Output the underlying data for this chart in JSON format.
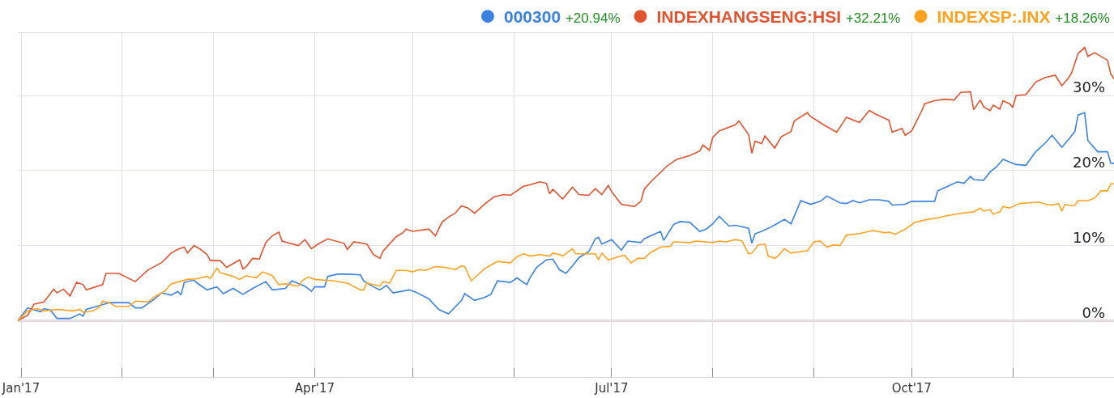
{
  "chart_data": {
    "type": "line",
    "xlim": [
      "2016-12-31",
      "2017-12-02"
    ],
    "xticks": [
      {
        "value": "2017-01-01",
        "label": "Jan'17"
      },
      {
        "value": "2017-02-01",
        "label": null
      },
      {
        "value": "2017-03-01",
        "label": null
      },
      {
        "value": "2017-04-01",
        "label": "Apr'17"
      },
      {
        "value": "2017-05-01",
        "label": null
      },
      {
        "value": "2017-06-01",
        "label": null
      },
      {
        "value": "2017-07-01",
        "label": "Jul'17"
      },
      {
        "value": "2017-08-01",
        "label": null
      },
      {
        "value": "2017-09-01",
        "label": null
      },
      {
        "value": "2017-10-01",
        "label": "Oct'17"
      },
      {
        "value": "2017-11-01",
        "label": null
      },
      {
        "value": "2017-12-01",
        "label": null
      }
    ],
    "ylim": [
      -7.5,
      38.3
    ],
    "yticks": [
      {
        "value": 0,
        "label": "0%"
      },
      {
        "value": 10,
        "label": "10%"
      },
      {
        "value": 20,
        "label": "20%"
      },
      {
        "value": 30,
        "label": "30%"
      }
    ],
    "grid": true,
    "legend": "top right",
    "annotations": [
      "+20.94%",
      "+32.21%",
      "+18.26%"
    ],
    "ref_lines": [
      {
        "axis": "y",
        "value": 0,
        "color": "#9a5f5f"
      }
    ],
    "series": [
      {
        "name": "000300",
        "color": "#3b82e0",
        "x": [
          "2016-12-31",
          "2017-01-03",
          "2017-01-07",
          "2017-01-08",
          "2017-01-10",
          "2017-01-12",
          "2017-01-16",
          "2017-01-19",
          "2017-01-20",
          "2017-01-21",
          "2017-01-25",
          "2017-01-28",
          "2017-02-03",
          "2017-02-05",
          "2017-02-07",
          "2017-02-11",
          "2017-02-13",
          "2017-02-16",
          "2017-02-18",
          "2017-02-19",
          "2017-02-20",
          "2017-02-23",
          "2017-02-24",
          "2017-02-27",
          "2017-03-02",
          "2017-03-04",
          "2017-03-07",
          "2017-03-10",
          "2017-03-13",
          "2017-03-17",
          "2017-03-19",
          "2017-03-23",
          "2017-03-25",
          "2017-03-29",
          "2017-03-31",
          "2017-04-01",
          "2017-04-04",
          "2017-04-05",
          "2017-04-08",
          "2017-04-11",
          "2017-04-15",
          "2017-04-16",
          "2017-04-19",
          "2017-04-21",
          "2017-04-23",
          "2017-04-25",
          "2017-04-30",
          "2017-05-02",
          "2017-05-06",
          "2017-05-09",
          "2017-05-12",
          "2017-05-16",
          "2017-05-17",
          "2017-05-20",
          "2017-05-23",
          "2017-05-25",
          "2017-05-27",
          "2017-05-31",
          "2017-06-02",
          "2017-06-05",
          "2017-06-06",
          "2017-06-08",
          "2017-06-11",
          "2017-06-13",
          "2017-06-15",
          "2017-06-17",
          "2017-06-19",
          "2017-06-21",
          "2017-06-24",
          "2017-06-26",
          "2017-06-27",
          "2017-06-28",
          "2017-07-01",
          "2017-07-04",
          "2017-07-06",
          "2017-07-10",
          "2017-07-11",
          "2017-07-16",
          "2017-07-17",
          "2017-07-20",
          "2017-07-22",
          "2017-07-25",
          "2017-07-28",
          "2017-07-30",
          "2017-08-01",
          "2017-08-03",
          "2017-08-06",
          "2017-08-08",
          "2017-08-12",
          "2017-08-13",
          "2017-08-14",
          "2017-08-16",
          "2017-08-19",
          "2017-08-21",
          "2017-08-23",
          "2017-08-25",
          "2017-08-28",
          "2017-08-31",
          "2017-09-03",
          "2017-09-05",
          "2017-09-09",
          "2017-09-11",
          "2017-09-13",
          "2017-09-15",
          "2017-09-18",
          "2017-09-21",
          "2017-09-24",
          "2017-09-25",
          "2017-09-29",
          "2017-10-01",
          "2017-10-08",
          "2017-10-09",
          "2017-10-11",
          "2017-10-15",
          "2017-10-17",
          "2017-10-19",
          "2017-10-20",
          "2017-10-23",
          "2017-10-25",
          "2017-10-27",
          "2017-10-29",
          "2017-11-02",
          "2017-11-05",
          "2017-11-08",
          "2017-11-11",
          "2017-11-13",
          "2017-11-16",
          "2017-11-18",
          "2017-11-20",
          "2017-11-21",
          "2017-11-23",
          "2017-11-24",
          "2017-11-27",
          "2017-11-30",
          "2017-12-01",
          "2017-12-02"
        ],
        "values": [
          0,
          1.7,
          1.2,
          1.6,
          1.4,
          0.3,
          0.3,
          0.9,
          0.6,
          1.5,
          2.0,
          2.4,
          2.4,
          1.7,
          1.7,
          2.9,
          3.7,
          3.4,
          3.9,
          3.4,
          5.1,
          5.4,
          5.0,
          4.1,
          4.5,
          3.6,
          4.3,
          3.5,
          4.3,
          5.2,
          4.1,
          4.3,
          5.3,
          4.6,
          3.9,
          4.5,
          4.5,
          5.9,
          6.2,
          6.2,
          6.1,
          5.3,
          4.5,
          4.1,
          4.7,
          3.7,
          4.1,
          3.8,
          2.9,
          1.5,
          0.9,
          2.7,
          3.6,
          2.7,
          3.1,
          3.5,
          5.3,
          5.1,
          5.7,
          4.8,
          5.7,
          7.1,
          8.1,
          8.2,
          6.8,
          6.3,
          7.3,
          8.4,
          9.2,
          10.9,
          11.1,
          10.2,
          10.8,
          9.4,
          10.6,
          10.4,
          10.9,
          11.9,
          10.7,
          12.8,
          13.2,
          13.1,
          11.9,
          12.2,
          12.9,
          13.9,
          12.6,
          12.7,
          12.3,
          10.3,
          11.6,
          11.9,
          12.5,
          13.0,
          13.5,
          12.9,
          16.0,
          15.5,
          15.9,
          16.6,
          15.7,
          15.6,
          16.0,
          15.7,
          16.1,
          16.1,
          15.9,
          15.4,
          15.5,
          15.9,
          15.9,
          17.3,
          17.7,
          18.5,
          18.3,
          19.2,
          18.8,
          18.7,
          19.8,
          20.5,
          21.5,
          20.8,
          20.7,
          22.5,
          23.7,
          24.7,
          23.1,
          24.1,
          25.2,
          27.4,
          27.7,
          24.0,
          22.5,
          22.5,
          21.0,
          20.94
        ]
      },
      {
        "name": "INDEXHANGSENG:HSI",
        "color": "#e0532f",
        "x": [
          "2016-12-31",
          "2017-01-03",
          "2017-01-05",
          "2017-01-08",
          "2017-01-11",
          "2017-01-12",
          "2017-01-14",
          "2017-01-16",
          "2017-01-18",
          "2017-01-20",
          "2017-01-21",
          "2017-01-26",
          "2017-01-27",
          "2017-01-31",
          "2017-02-05",
          "2017-02-07",
          "2017-02-09",
          "2017-02-13",
          "2017-02-16",
          "2017-02-18",
          "2017-02-20",
          "2017-02-21",
          "2017-02-23",
          "2017-02-25",
          "2017-02-27",
          "2017-02-28",
          "2017-03-03",
          "2017-03-05",
          "2017-03-09",
          "2017-03-10",
          "2017-03-11",
          "2017-03-13",
          "2017-03-15",
          "2017-03-17",
          "2017-03-19",
          "2017-03-21",
          "2017-03-22",
          "2017-03-27",
          "2017-03-29",
          "2017-03-31",
          "2017-04-02",
          "2017-04-05",
          "2017-04-10",
          "2017-04-11",
          "2017-04-13",
          "2017-04-17",
          "2017-04-19",
          "2017-04-21",
          "2017-04-22",
          "2017-04-26",
          "2017-04-28",
          "2017-04-29",
          "2017-05-01",
          "2017-05-06",
          "2017-05-08",
          "2017-05-10",
          "2017-05-12",
          "2017-05-14",
          "2017-05-16",
          "2017-05-18",
          "2017-05-20",
          "2017-05-23",
          "2017-05-26",
          "2017-05-29",
          "2017-05-31",
          "2017-06-04",
          "2017-06-06",
          "2017-06-09",
          "2017-06-11",
          "2017-06-12",
          "2017-06-13",
          "2017-06-16",
          "2017-06-19",
          "2017-06-21",
          "2017-06-24",
          "2017-06-26",
          "2017-06-28",
          "2017-06-30",
          "2017-07-01",
          "2017-07-04",
          "2017-07-08",
          "2017-07-10",
          "2017-07-11",
          "2017-07-13",
          "2017-07-18",
          "2017-07-21",
          "2017-07-25",
          "2017-07-28",
          "2017-07-29",
          "2017-07-31",
          "2017-08-01",
          "2017-08-03",
          "2017-08-08",
          "2017-08-09",
          "2017-08-12",
          "2017-08-13",
          "2017-08-14",
          "2017-08-16",
          "2017-08-17",
          "2017-08-20",
          "2017-08-22",
          "2017-08-25",
          "2017-08-26",
          "2017-08-30",
          "2017-08-31",
          "2017-09-04",
          "2017-09-08",
          "2017-09-11",
          "2017-09-15",
          "2017-09-18",
          "2017-09-20",
          "2017-09-24",
          "2017-09-25",
          "2017-09-28",
          "2017-09-29",
          "2017-10-01",
          "2017-10-04",
          "2017-10-05",
          "2017-10-08",
          "2017-10-11",
          "2017-10-14",
          "2017-10-16",
          "2017-10-19",
          "2017-10-20",
          "2017-10-22",
          "2017-10-23",
          "2017-10-25",
          "2017-10-26",
          "2017-10-28",
          "2017-10-29",
          "2017-10-31",
          "2017-11-01",
          "2017-11-02",
          "2017-11-05",
          "2017-11-08",
          "2017-11-11",
          "2017-11-14",
          "2017-11-16",
          "2017-11-18",
          "2017-11-19",
          "2017-11-21",
          "2017-11-23",
          "2017-11-24",
          "2017-11-26",
          "2017-11-30",
          "2017-12-01",
          "2017-12-02"
        ],
        "values": [
          0,
          0.7,
          2.2,
          2.5,
          4.2,
          3.7,
          4.2,
          3.3,
          5.1,
          4.8,
          4.1,
          4.8,
          6.3,
          6.3,
          5.2,
          6.0,
          6.8,
          7.7,
          9.0,
          9.5,
          9.8,
          9.0,
          10.0,
          9.5,
          8.8,
          8.0,
          8.0,
          7.1,
          8.1,
          6.9,
          7.2,
          8.3,
          8.2,
          10.4,
          11.3,
          11.8,
          10.6,
          10.0,
          10.8,
          9.6,
          10.2,
          10.9,
          10.3,
          9.5,
          10.5,
          10.2,
          8.8,
          8.3,
          9.3,
          11.2,
          11.7,
          12.2,
          11.9,
          12.2,
          11.3,
          13.1,
          13.8,
          14.3,
          15.3,
          15.0,
          14.3,
          15.5,
          16.5,
          16.8,
          16.7,
          17.9,
          18.1,
          18.5,
          18.3,
          16.9,
          17.5,
          16.2,
          17.8,
          16.8,
          16.7,
          17.6,
          16.8,
          18.0,
          17.2,
          15.5,
          15.2,
          15.9,
          17.5,
          18.5,
          20.6,
          21.5,
          22.0,
          22.6,
          23.4,
          22.7,
          24.4,
          25.3,
          26.1,
          26.6,
          24.8,
          22.3,
          23.9,
          23.6,
          24.6,
          23.0,
          24.5,
          25.2,
          26.6,
          27.7,
          27.2,
          26.1,
          25.1,
          27.1,
          26.4,
          28.0,
          27.5,
          26.7,
          25.1,
          25.6,
          24.7,
          25.3,
          27.9,
          28.9,
          29.3,
          29.5,
          29.4,
          30.4,
          30.5,
          28.1,
          29.4,
          28.5,
          28.0,
          28.7,
          28.2,
          29.3,
          28.9,
          28.4,
          30.0,
          30.1,
          31.8,
          32.4,
          32.7,
          31.3,
          32.3,
          33.0,
          35.6,
          36.4,
          35.2,
          35.7,
          34.7,
          32.9,
          32.21
        ]
      },
      {
        "name": "INDEXSP:.INX",
        "color": "#ffa21f",
        "x": [
          "2016-12-31",
          "2017-01-03",
          "2017-01-06",
          "2017-01-08",
          "2017-01-12",
          "2017-01-17",
          "2017-01-19",
          "2017-01-20",
          "2017-01-23",
          "2017-01-25",
          "2017-01-26",
          "2017-01-28",
          "2017-01-30",
          "2017-02-03",
          "2017-02-05",
          "2017-02-09",
          "2017-02-11",
          "2017-02-14",
          "2017-02-16",
          "2017-02-21",
          "2017-02-24",
          "2017-02-27",
          "2017-02-28",
          "2017-03-02",
          "2017-03-03",
          "2017-03-07",
          "2017-03-09",
          "2017-03-11",
          "2017-03-14",
          "2017-03-16",
          "2017-03-19",
          "2017-03-21",
          "2017-03-23",
          "2017-03-27",
          "2017-03-28",
          "2017-03-30",
          "2017-04-01",
          "2017-04-07",
          "2017-04-11",
          "2017-04-15",
          "2017-04-16",
          "2017-04-17",
          "2017-04-21",
          "2017-04-22",
          "2017-04-24",
          "2017-04-26",
          "2017-04-29",
          "2017-05-01",
          "2017-05-03",
          "2017-05-05",
          "2017-05-08",
          "2017-05-11",
          "2017-05-14",
          "2017-05-16",
          "2017-05-17",
          "2017-05-19",
          "2017-05-20",
          "2017-05-23",
          "2017-05-25",
          "2017-05-27",
          "2017-05-31",
          "2017-06-02",
          "2017-06-04",
          "2017-06-06",
          "2017-06-09",
          "2017-06-12",
          "2017-06-13",
          "2017-06-15",
          "2017-06-16",
          "2017-06-19",
          "2017-06-20",
          "2017-06-26",
          "2017-06-27",
          "2017-06-28",
          "2017-06-30",
          "2017-07-03",
          "2017-07-05",
          "2017-07-07",
          "2017-07-09",
          "2017-07-11",
          "2017-07-13",
          "2017-07-16",
          "2017-07-19",
          "2017-07-20",
          "2017-07-25",
          "2017-07-27",
          "2017-08-01",
          "2017-08-03",
          "2017-08-05",
          "2017-08-08",
          "2017-08-10",
          "2017-08-12",
          "2017-08-13",
          "2017-08-15",
          "2017-08-17",
          "2017-08-18",
          "2017-08-20",
          "2017-08-21",
          "2017-08-23",
          "2017-08-25",
          "2017-08-28",
          "2017-08-30",
          "2017-09-01",
          "2017-09-03",
          "2017-09-05",
          "2017-09-07",
          "2017-09-09",
          "2017-09-11",
          "2017-09-15",
          "2017-09-19",
          "2017-09-23",
          "2017-09-24",
          "2017-09-26",
          "2017-09-29",
          "2017-10-02",
          "2017-10-06",
          "2017-10-09",
          "2017-10-12",
          "2017-10-16",
          "2017-10-20",
          "2017-10-22",
          "2017-10-23",
          "2017-10-25",
          "2017-10-26",
          "2017-10-28",
          "2017-10-29",
          "2017-10-31",
          "2017-11-01",
          "2017-11-03",
          "2017-11-06",
          "2017-11-09",
          "2017-11-11",
          "2017-11-13",
          "2017-11-15",
          "2017-11-16",
          "2017-11-17",
          "2017-11-19",
          "2017-11-20",
          "2017-11-21",
          "2017-11-24",
          "2017-11-26",
          "2017-11-28",
          "2017-11-30",
          "2017-12-01",
          "2017-12-02"
        ],
        "values": [
          0,
          1.3,
          1.6,
          1.3,
          1.5,
          1.3,
          1.5,
          1.1,
          1.3,
          1.8,
          2.6,
          2.4,
          1.9,
          1.9,
          2.6,
          2.5,
          3.2,
          3.9,
          4.9,
          5.5,
          5.6,
          5.9,
          5.6,
          7.0,
          6.4,
          5.9,
          5.5,
          6.0,
          5.7,
          6.5,
          6.0,
          4.8,
          4.9,
          4.6,
          5.3,
          5.8,
          5.5,
          5.3,
          5.0,
          4.1,
          4.1,
          5.0,
          4.6,
          5.2,
          5.0,
          6.7,
          6.7,
          6.5,
          6.8,
          6.7,
          7.2,
          7.1,
          6.8,
          7.3,
          7.2,
          5.3,
          5.7,
          6.9,
          7.4,
          7.9,
          7.7,
          8.5,
          8.9,
          8.6,
          8.8,
          8.6,
          9.0,
          8.8,
          8.6,
          9.6,
          8.9,
          8.9,
          8.1,
          9.0,
          8.1,
          8.5,
          8.7,
          7.7,
          8.3,
          8.3,
          9.1,
          9.8,
          9.9,
          10.5,
          10.4,
          10.6,
          10.4,
          10.6,
          10.5,
          10.8,
          10.6,
          8.9,
          9.0,
          10.1,
          10.2,
          8.6,
          8.3,
          8.6,
          9.6,
          9.0,
          9.2,
          9.3,
          10.5,
          10.6,
          9.8,
          10.1,
          10.0,
          11.4,
          11.6,
          12.0,
          11.7,
          11.8,
          11.5,
          12.2,
          13.1,
          13.5,
          13.7,
          14.0,
          14.3,
          14.5,
          15.0,
          14.6,
          14.8,
          14.2,
          14.5,
          15.2,
          15.0,
          15.2,
          15.6,
          15.7,
          15.8,
          15.5,
          15.4,
          15.6,
          14.6,
          15.5,
          15.3,
          15.4,
          16.0,
          16.0,
          16.3,
          17.3,
          17.3,
          18.2,
          18.26
        ]
      }
    ]
  }
}
